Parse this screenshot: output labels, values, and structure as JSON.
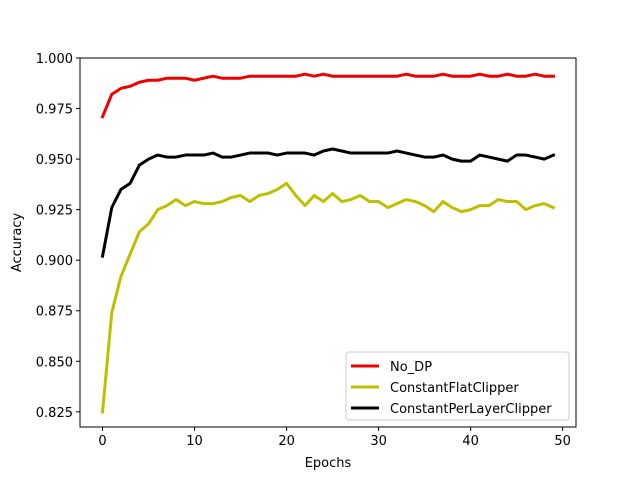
{
  "chart_data": {
    "type": "line",
    "title": "",
    "xlabel": "Epochs",
    "ylabel": "Accuracy",
    "xlim": [
      -2.45,
      51.45
    ],
    "ylim": [
      0.8175,
      1.0
    ],
    "xticks": [
      0,
      10,
      20,
      30,
      40,
      50
    ],
    "yticks": [
      0.825,
      0.85,
      0.875,
      0.9,
      0.925,
      0.95,
      0.975,
      1.0
    ],
    "ytick_labels": [
      "0.825",
      "0.850",
      "0.875",
      "0.900",
      "0.925",
      "0.950",
      "0.975",
      "1.000"
    ],
    "grid": false,
    "legend_position": "lower-right",
    "x": [
      0,
      1,
      2,
      3,
      4,
      5,
      6,
      7,
      8,
      9,
      10,
      11,
      12,
      13,
      14,
      15,
      16,
      17,
      18,
      19,
      20,
      21,
      22,
      23,
      24,
      25,
      26,
      27,
      28,
      29,
      30,
      31,
      32,
      33,
      34,
      35,
      36,
      37,
      38,
      39,
      40,
      41,
      42,
      43,
      44,
      45,
      46,
      47,
      48,
      49
    ],
    "series": [
      {
        "name": "No_DP",
        "color": "#ee0000",
        "values": [
          0.971,
          0.982,
          0.985,
          0.986,
          0.988,
          0.989,
          0.989,
          0.99,
          0.99,
          0.99,
          0.989,
          0.99,
          0.991,
          0.99,
          0.99,
          0.99,
          0.991,
          0.991,
          0.991,
          0.991,
          0.991,
          0.991,
          0.992,
          0.991,
          0.992,
          0.991,
          0.991,
          0.991,
          0.991,
          0.991,
          0.991,
          0.991,
          0.991,
          0.992,
          0.991,
          0.991,
          0.991,
          0.992,
          0.991,
          0.991,
          0.991,
          0.992,
          0.991,
          0.991,
          0.992,
          0.991,
          0.991,
          0.992,
          0.991,
          0.991
        ]
      },
      {
        "name": "ConstantFlatClipper",
        "color": "#bfbf00",
        "values": [
          0.825,
          0.874,
          0.892,
          0.903,
          0.914,
          0.918,
          0.925,
          0.927,
          0.93,
          0.927,
          0.929,
          0.928,
          0.928,
          0.929,
          0.931,
          0.932,
          0.929,
          0.932,
          0.933,
          0.935,
          0.938,
          0.932,
          0.927,
          0.932,
          0.929,
          0.933,
          0.929,
          0.93,
          0.932,
          0.929,
          0.929,
          0.926,
          0.928,
          0.93,
          0.929,
          0.927,
          0.924,
          0.929,
          0.926,
          0.924,
          0.925,
          0.927,
          0.927,
          0.93,
          0.929,
          0.929,
          0.925,
          0.927,
          0.928,
          0.926
        ]
      },
      {
        "name": "ConstantPerLayerClipper",
        "color": "#000000",
        "values": [
          0.902,
          0.926,
          0.935,
          0.938,
          0.947,
          0.95,
          0.952,
          0.951,
          0.951,
          0.952,
          0.952,
          0.952,
          0.953,
          0.951,
          0.951,
          0.952,
          0.953,
          0.953,
          0.953,
          0.952,
          0.953,
          0.953,
          0.953,
          0.952,
          0.954,
          0.955,
          0.954,
          0.953,
          0.953,
          0.953,
          0.953,
          0.953,
          0.954,
          0.953,
          0.952,
          0.951,
          0.951,
          0.952,
          0.95,
          0.949,
          0.949,
          0.952,
          0.951,
          0.95,
          0.949,
          0.952,
          0.952,
          0.951,
          0.95,
          0.952
        ]
      }
    ]
  }
}
